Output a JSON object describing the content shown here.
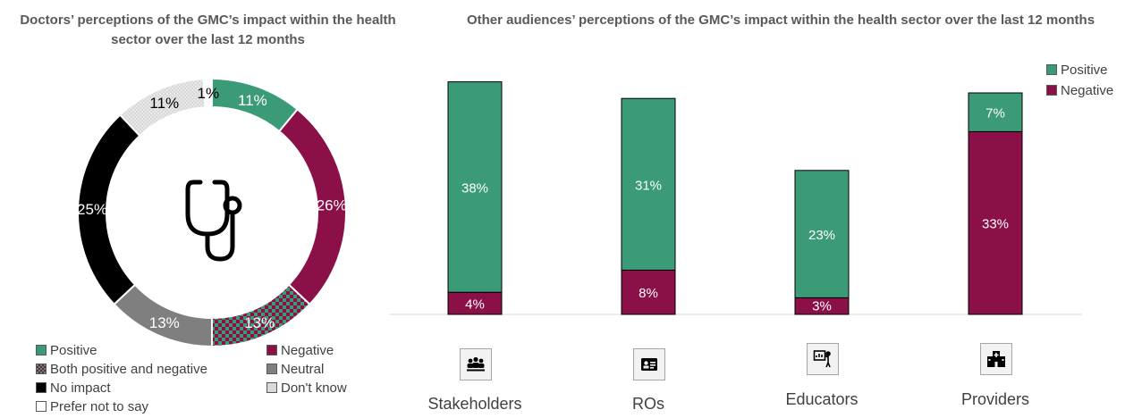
{
  "titles": {
    "left": "Doctors’ perceptions of the GMC’s impact within the health sector over the last 12 months",
    "right": "Other audiences’ perceptions of the GMC’s impact within the health sector over the last 12 months"
  },
  "colors": {
    "positive": "#3a9b76",
    "negative": "#8c1048",
    "neutral": "#7f7f7f",
    "no_impact": "#000000",
    "dont_know": "#d9d9d9",
    "prefer_not": "#ffffff"
  },
  "icons": [
    "stethoscope-icon",
    "group-icon",
    "id-card-icon",
    "presenter-icon",
    "hospital-icon"
  ],
  "chart_data": [
    {
      "type": "pie",
      "title": "Doctors’ perceptions of the GMC’s impact within the health sector over the last 12 months",
      "slices": [
        {
          "name": "Positive",
          "value": 11,
          "label": "11%",
          "color": "#3a9b76"
        },
        {
          "name": "Negative",
          "value": 26,
          "label": "26%",
          "color": "#8c1048"
        },
        {
          "name": "Both positive and negative",
          "value": 13,
          "label": "13%",
          "color": "pattern"
        },
        {
          "name": "Neutral",
          "value": 13,
          "label": "13%",
          "color": "#7f7f7f"
        },
        {
          "name": "No impact",
          "value": 25,
          "label": "25%",
          "color": "#000000"
        },
        {
          "name": "Don't know",
          "value": 11,
          "label": "11%",
          "color": "#d9d9d9"
        },
        {
          "name": "Prefer not to say",
          "value": 1,
          "label": "1%",
          "color": "#ffffff"
        }
      ],
      "legend": [
        "Positive",
        "Negative",
        "Both positive and negative",
        "Neutral",
        "No impact",
        "Don't know",
        "Prefer not to say"
      ]
    },
    {
      "type": "bar",
      "title": "Other audiences’ perceptions of the GMC’s impact within the health sector over the last 12 months",
      "categories": [
        "Stakeholders",
        "ROs",
        "Educators",
        "Providers"
      ],
      "series": [
        {
          "name": "Negative",
          "values": [
            4,
            8,
            3,
            33
          ],
          "labels": [
            "4%",
            "8%",
            "3%",
            "33%"
          ]
        },
        {
          "name": "Positive",
          "values": [
            38,
            31,
            23,
            7
          ],
          "labels": [
            "38%",
            "31%",
            "23%",
            "7%"
          ]
        }
      ],
      "stacked": true,
      "legend_position": "top-right",
      "legend": [
        "Positive",
        "Negative"
      ]
    }
  ]
}
